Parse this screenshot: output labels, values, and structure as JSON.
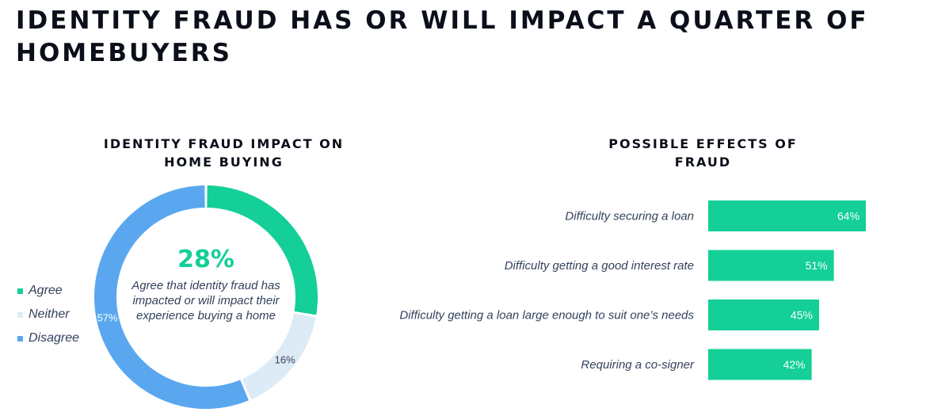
{
  "title": "IDENTITY FRAUD HAS OR WILL IMPACT A QUARTER OF HOMEBUYERS",
  "colors": {
    "agree": "#14cf97",
    "neither": "#dcebf6",
    "disagree": "#5aa7f0",
    "bar": "#14cf97"
  },
  "donut": {
    "center_value": "28%",
    "center_text": "Agree that identity fraud has impacted or will impact their experience buying a home"
  },
  "chart_data": [
    {
      "type": "pie",
      "title": "IDENTITY FRAUD IMPACT ON HOME BUYING",
      "categories": [
        "Agree",
        "Neither",
        "Disagree"
      ],
      "values": [
        28,
        16,
        57
      ],
      "value_labels": [
        "",
        "16%",
        "57%"
      ],
      "legend": "left"
    },
    {
      "type": "bar",
      "orientation": "horizontal",
      "title": "POSSIBLE EFFECTS OF FRAUD",
      "categories": [
        "Difficulty securing a loan",
        "Difficulty getting a good interest rate",
        "Difficulty getting a loan large enough to suit one’s needs",
        "Requiring a co-signer"
      ],
      "values": [
        64,
        51,
        45,
        42
      ],
      "value_labels": [
        "64%",
        "51%",
        "45%",
        "42%"
      ],
      "xlim": [
        0,
        100
      ],
      "grid": false
    }
  ]
}
